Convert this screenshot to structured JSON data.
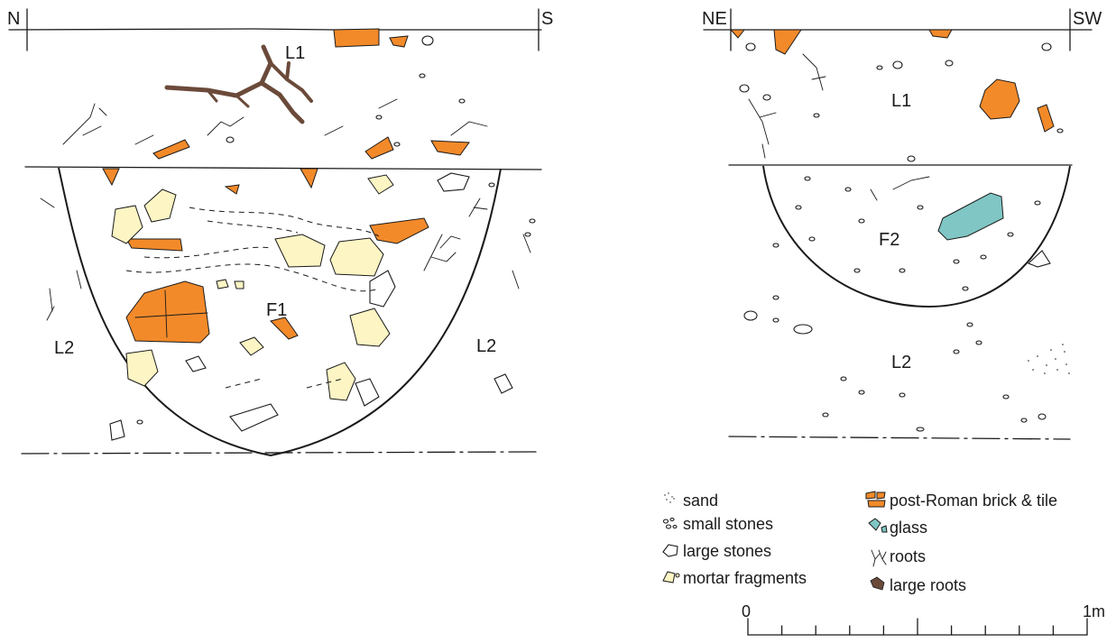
{
  "colors": {
    "brick": "#f28a2a",
    "mortar": "#fdf5c4",
    "glass": "#7fc6c4",
    "large_root": "#6b4a3a",
    "ink": "#1a1a1a"
  },
  "section_left": {
    "orientation_left": "N",
    "orientation_right": "S",
    "layer_top": "L1",
    "layer_bottom_left": "L2",
    "layer_bottom_right": "L2",
    "feature": "F1"
  },
  "section_right": {
    "orientation_left": "NE",
    "orientation_right": "SW",
    "layer_top": "L1",
    "layer_bottom": "L2",
    "feature": "F2"
  },
  "legend": {
    "items": [
      {
        "icon": "sand-icon",
        "label": "sand"
      },
      {
        "icon": "small-stones-icon",
        "label": "small stones"
      },
      {
        "icon": "large-stones-icon",
        "label": "large stones"
      },
      {
        "icon": "mortar-fragments-icon",
        "label": "mortar fragments"
      },
      {
        "icon": "brick-tile-icon",
        "label": "post-Roman brick & tile"
      },
      {
        "icon": "glass-icon",
        "label": "glass"
      },
      {
        "icon": "roots-icon",
        "label": "roots"
      },
      {
        "icon": "large-roots-icon",
        "label": "large roots"
      }
    ]
  },
  "scale_bar": {
    "start_label": "0",
    "end_label": "1m",
    "divisions": 10
  }
}
